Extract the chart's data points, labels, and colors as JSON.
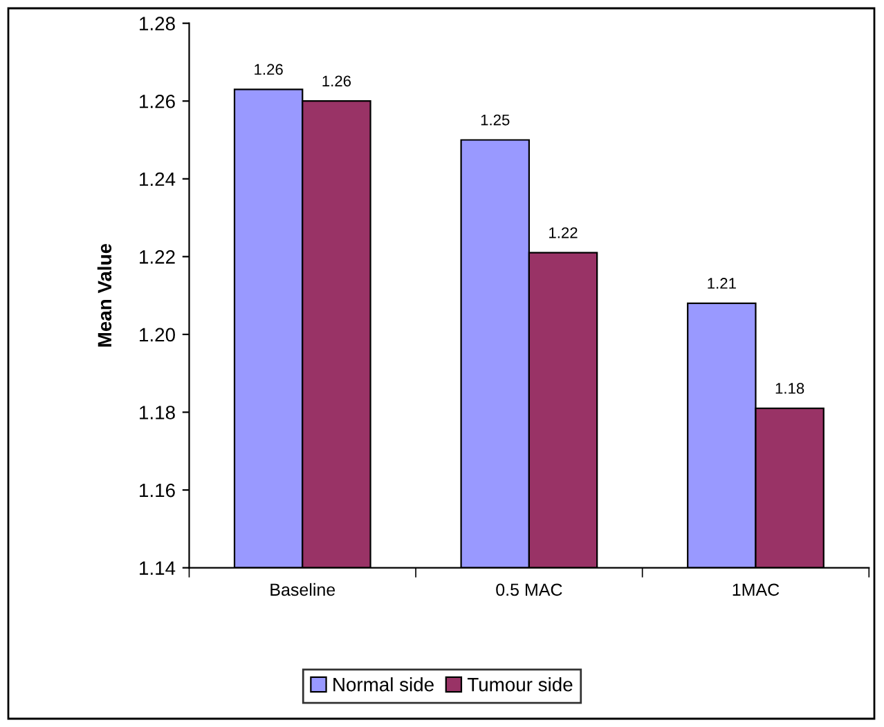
{
  "chart_data": {
    "type": "bar",
    "ylabel": "Mean Value",
    "categories": [
      "Baseline",
      "0.5 MAC",
      "1MAC"
    ],
    "series": [
      {
        "name": "Normal side",
        "color": "#9999ff",
        "values": [
          1.263,
          1.25,
          1.208
        ],
        "value_labels": [
          "1.26",
          "1.25",
          "1.21"
        ]
      },
      {
        "name": "Tumour side",
        "color": "#993366",
        "values": [
          1.26,
          1.221,
          1.181
        ],
        "value_labels": [
          "1.26",
          "1.22",
          "1.18"
        ]
      }
    ],
    "ylim": [
      1.14,
      1.28
    ],
    "yticks": [
      {
        "value": 1.14,
        "label": "1.14"
      },
      {
        "value": 1.16,
        "label": "1.16"
      },
      {
        "value": 1.18,
        "label": "1.18"
      },
      {
        "value": 1.2,
        "label": "1.20"
      },
      {
        "value": 1.22,
        "label": "1.22"
      },
      {
        "value": 1.24,
        "label": "1.24"
      },
      {
        "value": 1.26,
        "label": "1.26"
      },
      {
        "value": 1.28,
        "label": "1.28"
      }
    ],
    "grid": false,
    "legend": "bottom"
  }
}
